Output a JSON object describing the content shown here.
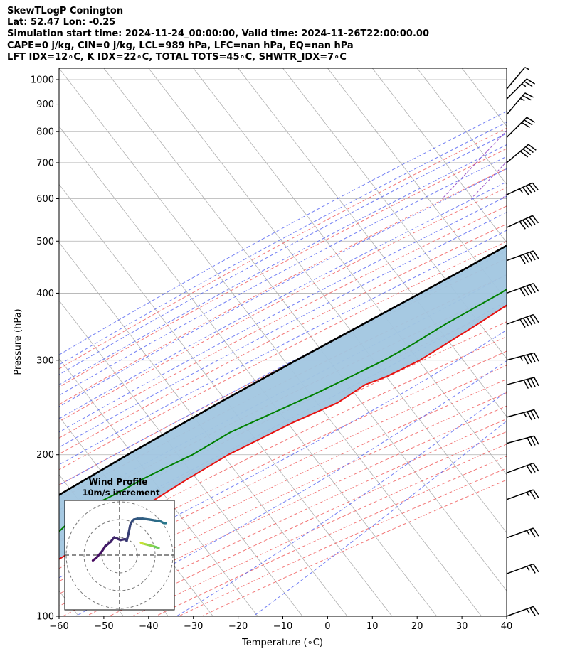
{
  "header": {
    "line1": "SkewTLogP Conington",
    "line2": "Lat: 52.47   Lon: -0.25",
    "line3": "Simulation start time: 2024-11-24_00:00:00, Valid time: 2024-11-26T22:00:00.00",
    "line4": "CAPE=0 j/kg, CIN=0 j/kg, LCL=989 hPa, LFC=nan hPa, EQ=nan hPa",
    "line5": "LFT IDX=12∘C, K IDX=22∘C, TOTAL TOTS=45∘C, SHWTR_IDX=7∘C"
  },
  "chart_data": {
    "type": "skewt",
    "xlabel": "Temperature (∘C)",
    "ylabel": "Pressure (hPa)",
    "xlim": [
      -60,
      40
    ],
    "ylim": [
      1050,
      100
    ],
    "y_scale": "log",
    "x_ticks": [
      -60,
      -50,
      -40,
      -30,
      -20,
      -10,
      0,
      10,
      20,
      30,
      40
    ],
    "x_tick_labels": [
      "−60",
      "−50",
      "−40",
      "−30",
      "−20",
      "−10",
      "0",
      "10",
      "20",
      "30",
      "40"
    ],
    "y_ticks": [
      1000,
      900,
      800,
      700,
      600,
      500,
      400,
      300,
      200,
      100
    ],
    "y_tick_labels": [
      "1000",
      "900",
      "800",
      "700",
      "600",
      "500",
      "400",
      "300",
      "200",
      "100"
    ],
    "grid": true,
    "colors": {
      "temperature": "#e8110f",
      "dewpoint": "#008000",
      "parcel": "#000000",
      "cape_fill": "#a1c6e0",
      "dry_adiabats": "#f06060",
      "moist_adiabats": "#5060f0",
      "mixing_ratio": "#9040c0",
      "isotherms": "#b0b0b0"
    },
    "series": [
      {
        "key": "temperature",
        "pressure": [
          1000,
          990,
          975,
          950,
          925,
          900,
          850,
          800,
          750,
          700,
          650,
          600,
          550,
          500,
          450,
          400,
          350,
          300,
          280,
          270,
          250,
          230,
          200,
          180,
          160,
          140,
          130,
          120,
          110,
          100
        ],
        "values": [
          6.4,
          5.5,
          5.8,
          6.5,
          7.2,
          7.6,
          6.2,
          5.1,
          4.4,
          3.3,
          1.6,
          -0.3,
          -2.1,
          -4.5,
          -7.5,
          -11.5,
          -16.8,
          -23.5,
          -28.0,
          -31.5,
          -34.5,
          -41.0,
          -50.0,
          -55.0,
          -60.0,
          -66.0,
          -69.0,
          -73.0,
          -77.0,
          -81.0
        ]
      },
      {
        "key": "dewpoint",
        "pressure": [
          1000,
          990,
          975,
          950,
          925,
          900,
          850,
          800,
          750,
          700,
          650,
          600,
          550,
          500,
          450,
          400,
          350,
          320,
          300,
          280,
          260,
          240,
          220,
          200,
          190,
          180,
          170,
          160,
          150,
          140,
          130,
          120,
          110,
          100
        ],
        "values": [
          5.0,
          4.5,
          5.0,
          6.0,
          6.8,
          7.5,
          4.0,
          -0.5,
          -1.5,
          -2.0,
          -3.0,
          -4.5,
          -6.2,
          -8.5,
          -12.0,
          -17.0,
          -24.0,
          -28.0,
          -31.5,
          -36.0,
          -41.0,
          -47.0,
          -53.5,
          -58.0,
          -61.5,
          -65.0,
          -68.0,
          -72.0,
          -74.0,
          -75.0,
          -77.0,
          -80.0,
          -84.0,
          -88.0
        ]
      },
      {
        "key": "parcel",
        "pressure": [
          1000,
          989,
          950,
          900,
          850,
          800,
          750,
          700,
          650,
          600,
          550,
          500,
          450,
          400,
          350,
          300,
          250,
          200,
          150,
          100
        ],
        "values": [
          5.9,
          5.3,
          4.0,
          2.3,
          0.4,
          -1.7,
          -4.1,
          -6.9,
          -10.1,
          -13.7,
          -17.9,
          -22.8,
          -28.4,
          -34.9,
          -42.4,
          -51.1,
          -61.0,
          -72.5,
          -86.5,
          -104.7
        ]
      }
    ],
    "wind_barbs": {
      "pressure": [
        100,
        120,
        140,
        165,
        185,
        210,
        235,
        270,
        300,
        350,
        400,
        460,
        530,
        610,
        700,
        780,
        860,
        920,
        960
      ],
      "speed_kt": [
        25,
        25,
        25,
        25,
        30,
        30,
        35,
        40,
        45,
        50,
        50,
        50,
        50,
        45,
        40,
        30,
        25,
        25,
        5
      ],
      "direction_deg": [
        250,
        250,
        250,
        250,
        250,
        255,
        255,
        255,
        255,
        250,
        250,
        250,
        245,
        245,
        230,
        225,
        220,
        225,
        220
      ]
    },
    "inset": {
      "title": "Wind Profile",
      "subtitle": "10m/s increment",
      "u": [
        -15.0,
        -13.0,
        -10.0,
        -8.0,
        -5.0,
        -3.0,
        0.5,
        3.0,
        4.0,
        5.0,
        6.0,
        7.0,
        8.0,
        10.0,
        13.0,
        17.0,
        20.0,
        23.0,
        25.0,
        26.0
      ],
      "v": [
        -3.0,
        -1.5,
        2.0,
        5.0,
        7.5,
        10.0,
        8.5,
        9.0,
        8.0,
        12.0,
        17.0,
        19.0,
        20.0,
        20.5,
        20.5,
        20.0,
        19.5,
        19.0,
        18.0,
        18.0
      ],
      "u2": [
        22,
        19,
        15,
        13,
        12
      ],
      "v2": [
        4,
        5,
        6,
        6.5,
        7
      ]
    }
  }
}
